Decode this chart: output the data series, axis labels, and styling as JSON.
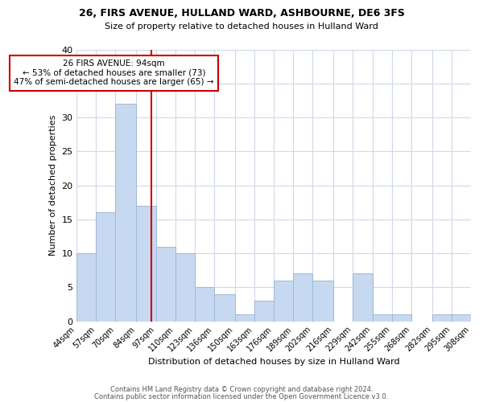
{
  "title": "26, FIRS AVENUE, HULLAND WARD, ASHBOURNE, DE6 3FS",
  "subtitle": "Size of property relative to detached houses in Hulland Ward",
  "xlabel": "Distribution of detached houses by size in Hulland Ward",
  "ylabel": "Number of detached properties",
  "bar_edges": [
    44,
    57,
    70,
    84,
    97,
    110,
    123,
    136,
    150,
    163,
    176,
    189,
    202,
    216,
    229,
    242,
    255,
    268,
    282,
    295,
    308
  ],
  "bar_heights": [
    10,
    16,
    32,
    17,
    11,
    10,
    5,
    4,
    1,
    3,
    6,
    7,
    6,
    0,
    7,
    1,
    1,
    0,
    1,
    1
  ],
  "bar_color": "#c6d9f0",
  "bar_edge_color": "#a0b8d8",
  "vline_x": 94,
  "vline_color": "#cc0000",
  "annotation_line1": "26 FIRS AVENUE: 94sqm",
  "annotation_line2": "← 53% of detached houses are smaller (73)",
  "annotation_line3": "47% of semi-detached houses are larger (65) →",
  "annotation_box_color": "#ffffff",
  "annotation_box_edge": "#cc0000",
  "ylim": [
    0,
    40
  ],
  "yticks": [
    0,
    5,
    10,
    15,
    20,
    25,
    30,
    35,
    40
  ],
  "tick_labels": [
    "44sqm",
    "57sqm",
    "70sqm",
    "84sqm",
    "97sqm",
    "110sqm",
    "123sqm",
    "136sqm",
    "150sqm",
    "163sqm",
    "176sqm",
    "189sqm",
    "202sqm",
    "216sqm",
    "229sqm",
    "242sqm",
    "255sqm",
    "268sqm",
    "282sqm",
    "295sqm",
    "308sqm"
  ],
  "footer1": "Contains HM Land Registry data © Crown copyright and database right 2024.",
  "footer2": "Contains public sector information licensed under the Open Government Licence v3.0.",
  "background_color": "#ffffff",
  "grid_color": "#d0d8e8",
  "title_fontsize": 9,
  "subtitle_fontsize": 8,
  "ylabel_fontsize": 8,
  "xlabel_fontsize": 8,
  "ytick_fontsize": 8,
  "xtick_fontsize": 7,
  "annotation_fontsize": 7.5,
  "footer_fontsize": 6
}
